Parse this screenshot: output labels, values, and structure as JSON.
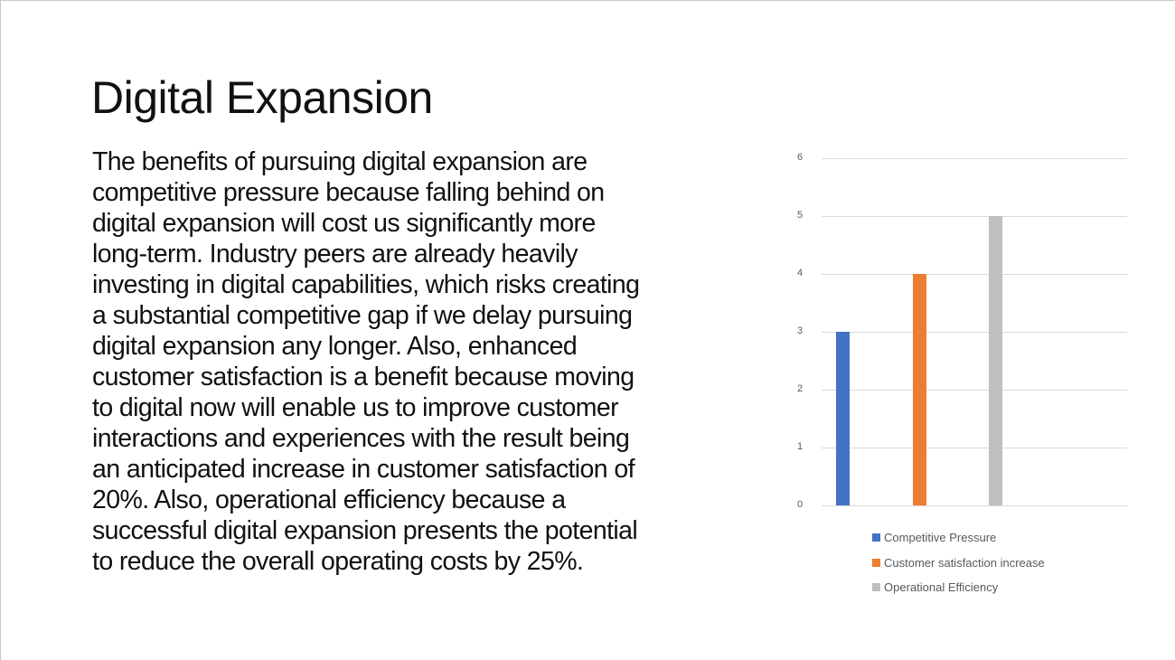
{
  "slide": {
    "title": "Digital Expansion",
    "body_lines": [
      "The benefits of pursuing digital expansion are",
      "competitive pressure because falling behind on",
      "digital expansion will cost us significantly more",
      "long-term. Industry peers are already heavily",
      "investing in digital capabilities, which risks creating",
      "a substantial competitive gap if we delay pursuing",
      "digital expansion any longer. Also, enhanced",
      "customer satisfaction is a benefit because moving",
      "to digital now will enable us to improve customer",
      "interactions and experiences with the result being",
      "an anticipated increase in customer satisfaction of",
      "20%. Also, operational efficiency because a",
      "successful digital expansion presents the potential",
      "to reduce the overall operating costs by 25%."
    ]
  },
  "chart_data": {
    "type": "bar",
    "title": "",
    "xlabel": "",
    "ylabel": "",
    "categories": [
      ""
    ],
    "series": [
      {
        "name": "Competitive Pressure",
        "values": [
          3
        ],
        "color": "#4472C4"
      },
      {
        "name": "Customer satisfaction increase",
        "values": [
          4
        ],
        "color": "#ED7D31"
      },
      {
        "name": "Operational Efficiency",
        "values": [
          5
        ],
        "color": "#BFBFBF"
      }
    ],
    "yticks": [
      "0",
      "1",
      "2",
      "3",
      "4",
      "5",
      "6"
    ],
    "ylim": [
      0,
      6
    ],
    "grid": true,
    "legend_position": "bottom"
  }
}
